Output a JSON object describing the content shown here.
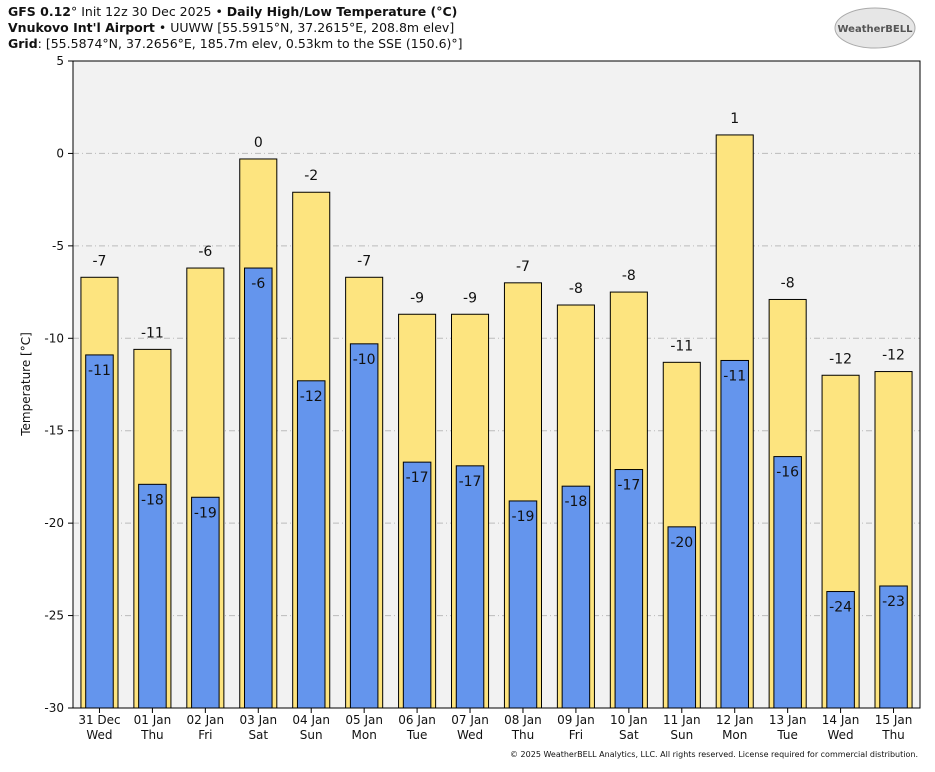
{
  "header": {
    "lines": [
      [
        {
          "text": "GFS 0.12",
          "bold": true
        },
        {
          "text": "° Init 12z 30 Dec 2025 • ",
          "bold": false
        },
        {
          "text": "Daily High/Low Temperature (°C)",
          "bold": true
        }
      ],
      [
        {
          "text": "Vnukovo Int'l Airport",
          "bold": true
        },
        {
          "text": " • UUWW [55.5915°N, 37.2615°E, 208.8m elev]",
          "bold": false
        }
      ],
      [
        {
          "text": "Grid",
          "bold": true
        },
        {
          "text": ": [55.5874°N, 37.2656°E, 185.7m elev, 0.53km to the SSE (150.6)°]",
          "bold": false
        }
      ]
    ],
    "logo": "WeatherBELL"
  },
  "footer": "© 2025 WeatherBELL Analytics, LLC. All rights reserved. License required for commercial distribution.",
  "chart_data": {
    "type": "bar",
    "ylabel": "Temperature [°C]",
    "categories": [
      "31 Dec",
      "01 Jan",
      "02 Jan",
      "03 Jan",
      "04 Jan",
      "05 Jan",
      "06 Jan",
      "07 Jan",
      "08 Jan",
      "09 Jan",
      "10 Jan",
      "11 Jan",
      "12 Jan",
      "13 Jan",
      "14 Jan",
      "15 Jan"
    ],
    "days": [
      "Wed",
      "Thu",
      "Fri",
      "Sat",
      "Sun",
      "Mon",
      "Tue",
      "Wed",
      "Thu",
      "Fri",
      "Sat",
      "Sun",
      "Mon",
      "Tue",
      "Wed",
      "Thu"
    ],
    "series": [
      {
        "name": "High",
        "color": "#fde47f",
        "values": [
          -6.7,
          -10.6,
          -6.2,
          -0.3,
          -2.1,
          -6.7,
          -8.7,
          -8.7,
          -7.0,
          -8.2,
          -7.5,
          -11.3,
          1.0,
          -7.9,
          -12.0,
          -11.8
        ],
        "value_labels": [
          "-7",
          "-11",
          "-6",
          "0",
          "-2",
          "-7",
          "-9",
          "-9",
          "-7",
          "-8",
          "-8",
          "-11",
          "1",
          "-8",
          "-12",
          "-12"
        ]
      },
      {
        "name": "Low",
        "color": "#6495ed",
        "values": [
          -10.9,
          -17.9,
          -18.6,
          -6.2,
          -12.3,
          -10.3,
          -16.7,
          -16.9,
          -18.8,
          -18.0,
          -17.1,
          -20.2,
          -11.2,
          -16.4,
          -23.7,
          -23.4
        ],
        "value_labels": [
          "-11",
          "-18",
          "-19",
          "-6",
          "-12",
          "-10",
          "-17",
          "-17",
          "-19",
          "-18",
          "-17",
          "-20",
          "-11",
          "-16",
          "-24",
          "-23"
        ]
      }
    ],
    "ylim": [
      -30,
      5
    ],
    "yticks": [
      5,
      0,
      -5,
      -10,
      -15,
      -20,
      -25,
      -30
    ],
    "grid": true,
    "background": "#f2f2f2"
  }
}
